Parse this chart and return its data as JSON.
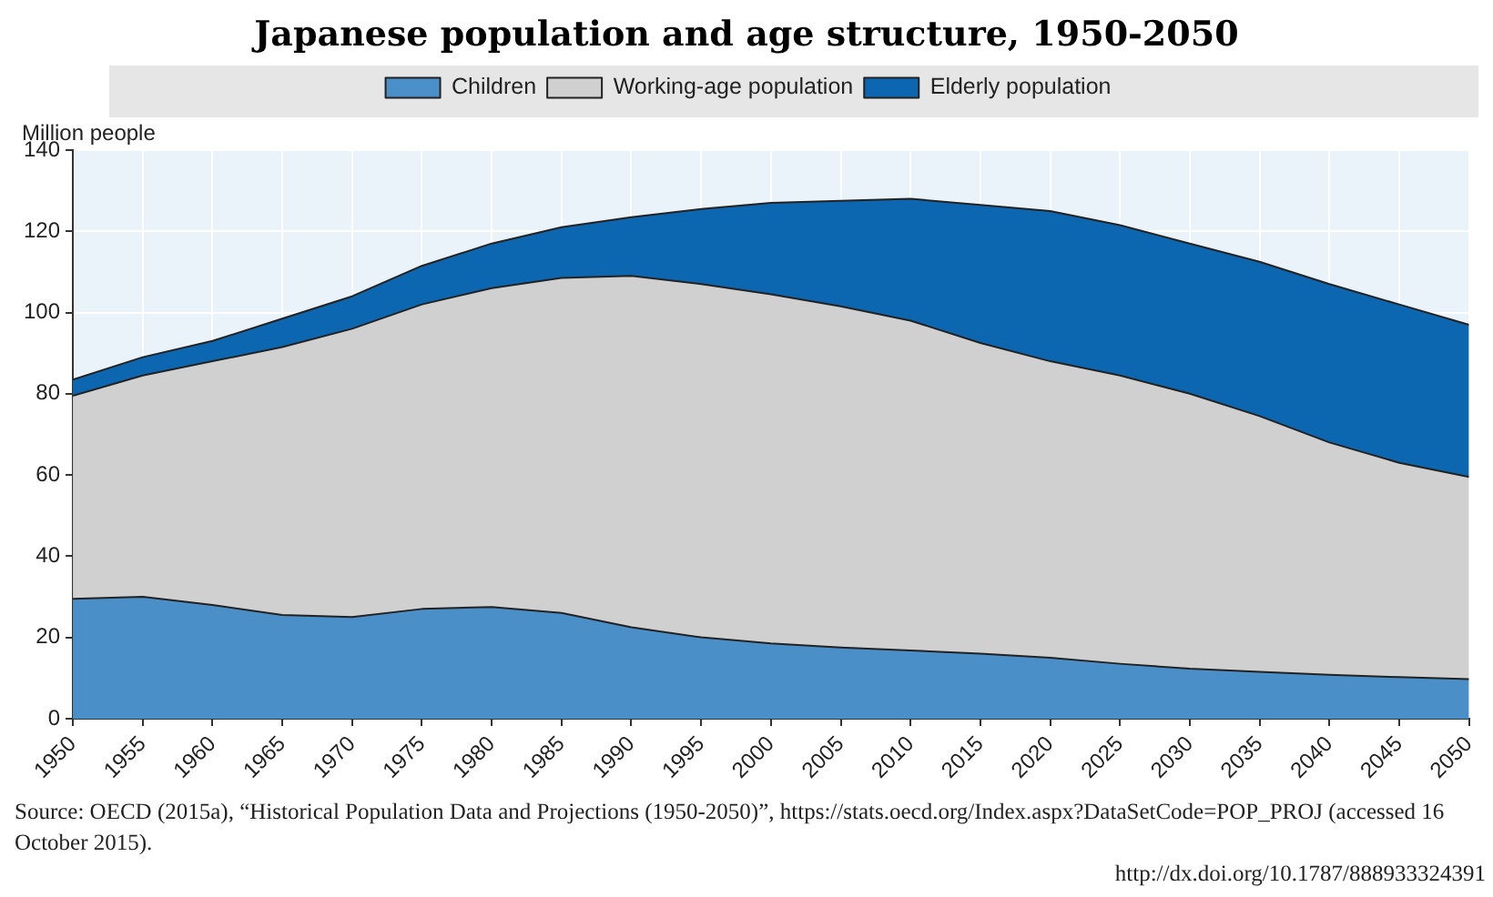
{
  "chart_data": {
    "type": "area",
    "title": "Japanese population and age structure, 1950-2050",
    "ylabel": "Million people",
    "stacked": true,
    "x": [
      1950,
      1955,
      1960,
      1965,
      1970,
      1975,
      1980,
      1985,
      1990,
      1995,
      2000,
      2005,
      2010,
      2015,
      2020,
      2025,
      2030,
      2035,
      2040,
      2045,
      2050
    ],
    "series": [
      {
        "name": "Children",
        "color": "#4a8fc7",
        "values": [
          29.5,
          30,
          28,
          25.5,
          25,
          27,
          27.5,
          26,
          22.5,
          20,
          18.5,
          17.5,
          16.8,
          16,
          15,
          13.5,
          12.3,
          11.5,
          10.8,
          10.2,
          9.7
        ]
      },
      {
        "name": "Working-age population",
        "color": "#d0d0d0",
        "values": [
          50,
          54.5,
          60,
          66,
          71,
          75,
          78.5,
          82.5,
          86.5,
          87,
          86,
          84,
          81.2,
          76.5,
          73,
          71,
          67.7,
          63,
          57.2,
          52.8,
          49.8
        ]
      },
      {
        "name": "Elderly population",
        "color": "#0d66b0",
        "values": [
          4,
          4.5,
          5,
          7,
          8,
          9.5,
          11,
          12.5,
          14.5,
          18.5,
          22.5,
          26,
          30,
          34,
          37,
          37,
          37,
          38,
          39,
          39,
          37.5
        ]
      }
    ],
    "xlim": [
      1950,
      2050
    ],
    "xticks": [
      1950,
      1955,
      1960,
      1965,
      1970,
      1975,
      1980,
      1985,
      1990,
      1995,
      2000,
      2005,
      2010,
      2015,
      2020,
      2025,
      2030,
      2035,
      2040,
      2045,
      2050
    ],
    "ylim": [
      0,
      140
    ],
    "yticks": [
      0,
      20,
      40,
      60,
      80,
      100,
      120,
      140
    ],
    "grid": true,
    "legend": "top",
    "annotations": [
      "Source: OECD (2015a), “Historical Population Data and Projections (1950-2050)”, https://stats.oecd.org/Index.aspx?DataSetCode=POP_PROJ (accessed 16 October 2015).",
      "http://dx.doi.org/10.1787/888933324391"
    ]
  }
}
